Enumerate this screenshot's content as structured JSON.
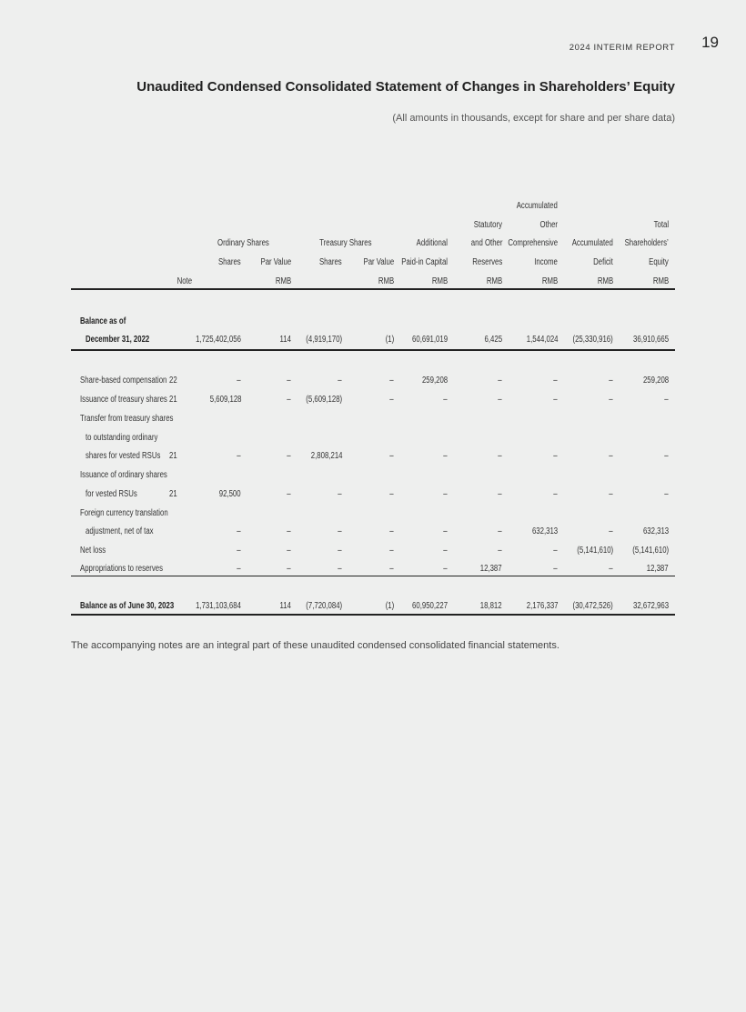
{
  "header": {
    "report": "2024 INTERIM REPORT",
    "page_number": "19"
  },
  "title": "Unaudited Condensed Consolidated Statement of Changes in Shareholders’ Equity",
  "subtitle": "(All amounts in thousands, except for share and per share data)",
  "table": {
    "group_headers": {
      "ordinary_shares": "Ordinary Shares",
      "treasury_shares": "Treasury Shares"
    },
    "columns": [
      {
        "lines": [
          "",
          "",
          "",
          "",
          "Note"
        ]
      },
      {
        "lines": [
          "",
          "",
          "",
          "Shares",
          ""
        ]
      },
      {
        "lines": [
          "",
          "",
          "",
          "Par Value",
          "RMB"
        ]
      },
      {
        "lines": [
          "",
          "",
          "",
          "Shares",
          ""
        ]
      },
      {
        "lines": [
          "",
          "",
          "",
          "Par Value",
          "RMB"
        ]
      },
      {
        "lines": [
          "",
          "",
          "Additional",
          "Paid-in Capital",
          "RMB"
        ]
      },
      {
        "lines": [
          "",
          "Statutory",
          "and Other",
          "Reserves",
          "RMB"
        ]
      },
      {
        "lines": [
          "Accumulated",
          "Other",
          "Comprehensive",
          "Income",
          "RMB"
        ]
      },
      {
        "lines": [
          "",
          "",
          "Accumulated",
          "Deficit",
          "RMB"
        ]
      },
      {
        "lines": [
          "",
          "Total",
          "Shareholders’",
          "Equity",
          "RMB"
        ]
      }
    ],
    "rows": [
      {
        "label": "Balance as of",
        "bold": true,
        "values": []
      },
      {
        "label": "December 31, 2022",
        "bold": true,
        "indent": true,
        "values": [
          "",
          "1,725,402,056",
          "114",
          "(4,919,170)",
          "(1)",
          "60,691,019",
          "6,425",
          "1,544,024",
          "(25,330,916)",
          "36,910,665"
        ]
      },
      {
        "label": "Share-based compensation",
        "values": [
          "22",
          "–",
          "–",
          "–",
          "–",
          "259,208",
          "–",
          "–",
          "–",
          "259,208"
        ]
      },
      {
        "label": "Issuance of treasury shares",
        "values": [
          "21",
          "5,609,128",
          "–",
          "(5,609,128)",
          "–",
          "–",
          "–",
          "–",
          "–",
          "–"
        ]
      },
      {
        "label": "Transfer from treasury shares",
        "values": []
      },
      {
        "label": "to outstanding ordinary",
        "indent": true,
        "values": []
      },
      {
        "label": "shares for vested RSUs",
        "indent": true,
        "values": [
          "21",
          "–",
          "–",
          "2,808,214",
          "–",
          "–",
          "–",
          "–",
          "–",
          "–"
        ]
      },
      {
        "label": "Issuance of ordinary shares",
        "values": []
      },
      {
        "label": "for vested RSUs",
        "indent": true,
        "values": [
          "21",
          "92,500",
          "–",
          "–",
          "–",
          "–",
          "–",
          "–",
          "–",
          "–"
        ]
      },
      {
        "label": "Foreign currency translation",
        "values": []
      },
      {
        "label": "adjustment, net of tax",
        "indent": true,
        "values": [
          "",
          "–",
          "–",
          "–",
          "–",
          "–",
          "–",
          "632,313",
          "–",
          "632,313"
        ]
      },
      {
        "label": "Net loss",
        "values": [
          "",
          "–",
          "–",
          "–",
          "–",
          "–",
          "–",
          "–",
          "(5,141,610)",
          "(5,141,610)"
        ]
      },
      {
        "label": "Appropriations to reserves",
        "values": [
          "",
          "–",
          "–",
          "–",
          "–",
          "–",
          "12,387",
          "–",
          "–",
          "12,387"
        ]
      },
      {
        "label": "Balance as of June 30, 2023",
        "bold": true,
        "values": [
          "",
          "1,731,103,684",
          "114",
          "(7,720,084)",
          "(1)",
          "60,950,227",
          "18,812",
          "2,176,337",
          "(30,472,526)",
          "32,672,963"
        ]
      }
    ]
  },
  "footer": "The accompanying notes are an integral part of these unaudited condensed consolidated financial statements."
}
